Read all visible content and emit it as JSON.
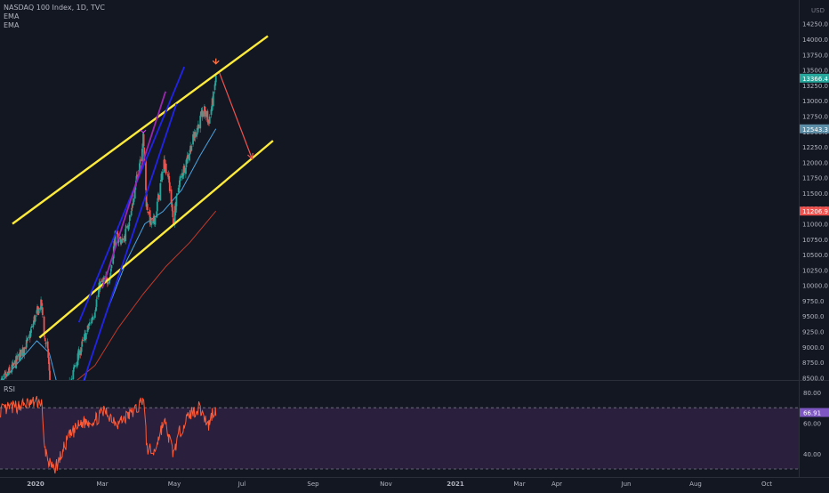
{
  "header": {
    "symbol": "NASDAQ 100 Index, 1D, TVC",
    "ema1": "EMA",
    "ema2": "EMA"
  },
  "price_axis": {
    "currency": "USD",
    "ticks": [
      "14250.0",
      "14000.0",
      "13750.0",
      "13500.0",
      "13250.0",
      "13000.0",
      "12750.0",
      "12500.0",
      "12250.0",
      "12000.0",
      "11750.0",
      "11500.0",
      "11250.0",
      "11000.0",
      "10750.0",
      "10500.0",
      "10250.0",
      "10000.0",
      "9750.0",
      "9500.0",
      "9250.0",
      "9000.0",
      "8750.0",
      "8500.0"
    ],
    "last_price_label": "13366.4",
    "ema_fast_label": "12543.3",
    "ema_slow_label": "11206.9"
  },
  "rsi_panel": {
    "title": "RSI",
    "ticks": [
      "80.00",
      "60.00",
      "40.00"
    ],
    "value_label": "66.91"
  },
  "time_axis": {
    "labels": [
      "2020",
      "Mar",
      "May",
      "Jul",
      "Sep",
      "Nov",
      "2021",
      "Mar",
      "Apr",
      "Jun",
      "Aug",
      "Oct"
    ]
  },
  "colors": {
    "background": "#131722",
    "candle_up": "#26a69a",
    "candle_down": "#ef5350",
    "channel": "#ffeb3b",
    "blue_channel": "#2124e8",
    "magenta_line": "#9c27b0",
    "ema_fast": "#4aa3df",
    "ema_slow": "#c0392b",
    "rsi_line": "#ff5a36",
    "arrow": "#ef5350",
    "rsi_band": "#2a1f3d"
  },
  "chart_data": {
    "type": "candlestick",
    "instrument": "NASDAQ 100 Index",
    "interval": "1D",
    "ylim": [
      8400,
      14400
    ],
    "rsi_ylim": [
      25,
      85
    ],
    "rsi_levels": [
      70,
      30
    ],
    "close_series": [
      {
        "date": "2019-12-01",
        "close": 8400
      },
      {
        "date": "2019-12-25",
        "close": 8650
      },
      {
        "date": "2020-01-10",
        "close": 8900
      },
      {
        "date": "2020-01-25",
        "close": 9100
      },
      {
        "date": "2020-02-05",
        "close": 9450
      },
      {
        "date": "2020-02-19",
        "close": 9700
      },
      {
        "date": "2020-02-25",
        "close": 9150
      },
      {
        "date": "2020-03-03",
        "close": 8850
      },
      {
        "date": "2020-03-12",
        "close": 7600
      },
      {
        "date": "2020-03-23",
        "close": 6900
      },
      {
        "date": "2020-04-08",
        "close": 8200
      },
      {
        "date": "2020-04-22",
        "close": 8650
      },
      {
        "date": "2020-05-10",
        "close": 9100
      },
      {
        "date": "2020-05-30",
        "close": 9550
      },
      {
        "date": "2020-06-10",
        "close": 10000
      },
      {
        "date": "2020-06-30",
        "close": 10150
      },
      {
        "date": "2020-07-10",
        "close": 10800
      },
      {
        "date": "2020-07-25",
        "close": 10700
      },
      {
        "date": "2020-08-10",
        "close": 11200
      },
      {
        "date": "2020-08-25",
        "close": 11950
      },
      {
        "date": "2020-09-02",
        "close": 12400
      },
      {
        "date": "2020-09-08",
        "close": 11350
      },
      {
        "date": "2020-09-18",
        "close": 10950
      },
      {
        "date": "2020-09-25",
        "close": 11100
      },
      {
        "date": "2020-10-12",
        "close": 12000
      },
      {
        "date": "2020-10-20",
        "close": 11800
      },
      {
        "date": "2020-10-30",
        "close": 11050
      },
      {
        "date": "2020-11-10",
        "close": 11650
      },
      {
        "date": "2020-11-25",
        "close": 12050
      },
      {
        "date": "2020-12-10",
        "close": 12450
      },
      {
        "date": "2020-12-28",
        "close": 12850
      },
      {
        "date": "2021-01-06",
        "close": 12650
      },
      {
        "date": "2021-01-14",
        "close": 13000
      },
      {
        "date": "2021-01-20",
        "close": 13366.4
      }
    ],
    "ema_fast": [
      {
        "date": "2019-12-01",
        "value": 8400
      },
      {
        "date": "2020-02-10",
        "value": 9100
      },
      {
        "date": "2020-03-05",
        "value": 8900
      },
      {
        "date": "2020-04-01",
        "value": 8000
      },
      {
        "date": "2020-04-20",
        "value": 7800
      },
      {
        "date": "2020-05-20",
        "value": 8700
      },
      {
        "date": "2020-06-25",
        "value": 9600
      },
      {
        "date": "2020-08-01",
        "value": 10400
      },
      {
        "date": "2020-09-05",
        "value": 11000
      },
      {
        "date": "2020-10-10",
        "value": 11200
      },
      {
        "date": "2020-11-15",
        "value": 11550
      },
      {
        "date": "2020-12-20",
        "value": 12100
      },
      {
        "date": "2021-01-20",
        "value": 12543.3
      }
    ],
    "ema_slow": [
      {
        "date": "2020-04-05",
        "value": 8300
      },
      {
        "date": "2020-06-01",
        "value": 8700
      },
      {
        "date": "2020-07-15",
        "value": 9300
      },
      {
        "date": "2020-09-01",
        "value": 9850
      },
      {
        "date": "2020-10-15",
        "value": 10300
      },
      {
        "date": "2020-12-01",
        "value": 10700
      },
      {
        "date": "2021-01-20",
        "value": 11206.9
      }
    ],
    "rsi": [
      {
        "date": "2019-12-01",
        "value": 68
      },
      {
        "date": "2020-01-15",
        "value": 72
      },
      {
        "date": "2020-02-19",
        "value": 74
      },
      {
        "date": "2020-02-24",
        "value": 45
      },
      {
        "date": "2020-03-03",
        "value": 35
      },
      {
        "date": "2020-03-12",
        "value": 29
      },
      {
        "date": "2020-03-23",
        "value": 35
      },
      {
        "date": "2020-04-10",
        "value": 50
      },
      {
        "date": "2020-05-05",
        "value": 60
      },
      {
        "date": "2020-06-01",
        "value": 62
      },
      {
        "date": "2020-06-20",
        "value": 68
      },
      {
        "date": "2020-07-15",
        "value": 60
      },
      {
        "date": "2020-08-05",
        "value": 65
      },
      {
        "date": "2020-08-25",
        "value": 71
      },
      {
        "date": "2020-09-02",
        "value": 78
      },
      {
        "date": "2020-09-09",
        "value": 44
      },
      {
        "date": "2020-09-22",
        "value": 40
      },
      {
        "date": "2020-10-12",
        "value": 62
      },
      {
        "date": "2020-10-30",
        "value": 40
      },
      {
        "date": "2020-11-12",
        "value": 55
      },
      {
        "date": "2020-12-01",
        "value": 66
      },
      {
        "date": "2020-12-20",
        "value": 70
      },
      {
        "date": "2021-01-06",
        "value": 58
      },
      {
        "date": "2021-01-14",
        "value": 68
      },
      {
        "date": "2021-01-20",
        "value": 66.91
      }
    ],
    "trendlines": [
      {
        "name": "upper-channel",
        "color": "yellow",
        "from": {
          "date": "2019-12-25",
          "price": 11000
        },
        "to": {
          "date": "2021-04-30",
          "price": 14050
        }
      },
      {
        "name": "lower-channel",
        "color": "yellow",
        "from": {
          "date": "2020-02-15",
          "price": 9150
        },
        "to": {
          "date": "2021-05-10",
          "price": 12350
        }
      },
      {
        "name": "blue-channel-upper",
        "color": "blue",
        "from": {
          "date": "2020-05-01",
          "price": 9400
        },
        "to": {
          "date": "2020-11-20",
          "price": 13550
        }
      },
      {
        "name": "blue-channel-lower",
        "color": "blue",
        "from": {
          "date": "2020-05-10",
          "price": 8450
        },
        "to": {
          "date": "2020-11-05",
          "price": 12950
        }
      },
      {
        "name": "magenta-line",
        "color": "magenta",
        "from": {
          "date": "2020-06-15",
          "price": 9950
        },
        "to": {
          "date": "2020-10-15",
          "price": 13150
        }
      }
    ],
    "projection_arrow": {
      "from": {
        "date": "2021-01-27",
        "price": 13450
      },
      "to": {
        "date": "2021-03-31",
        "price": 12050
      }
    },
    "marker_arrow": {
      "date": "2021-01-20",
      "price": 13600
    }
  }
}
